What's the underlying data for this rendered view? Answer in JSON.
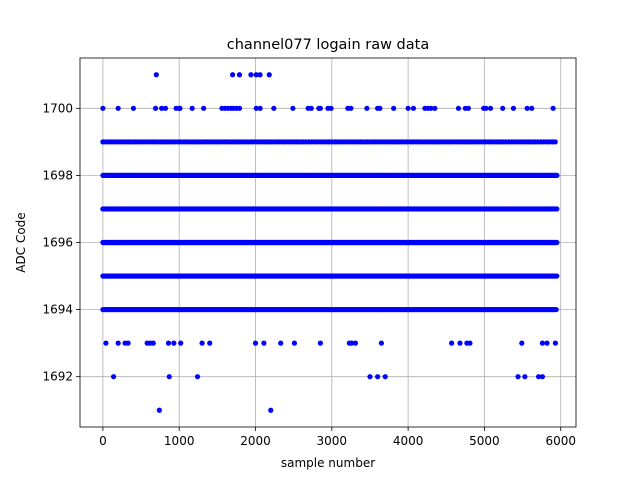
{
  "chart_data": {
    "type": "scatter",
    "title": "channel077 logain raw data",
    "xlabel": "sample number",
    "ylabel": "ADC Code",
    "xlim": [
      -300,
      6200
    ],
    "ylim": [
      1690.5,
      1701.5
    ],
    "xticks": [
      0,
      1000,
      2000,
      3000,
      4000,
      5000,
      6000
    ],
    "yticks": [
      1692,
      1694,
      1696,
      1698,
      1700
    ],
    "grid": true,
    "marker_color": "#0000ff",
    "series": [
      {
        "values_note_excluded": true,
        "points": [
          [
            700,
            1701
          ],
          [
            1700,
            1701
          ],
          [
            1790,
            1701
          ],
          [
            1940,
            1701
          ],
          [
            2010,
            1701
          ],
          [
            2060,
            1701
          ],
          [
            2180,
            1701
          ],
          [
            0,
            1700
          ],
          [
            200,
            1700
          ],
          [
            400,
            1700
          ],
          [
            690,
            1700
          ],
          [
            770,
            1700
          ],
          [
            820,
            1700
          ],
          [
            960,
            1700
          ],
          [
            1000,
            1700
          ],
          [
            1010,
            1700
          ],
          [
            1170,
            1700
          ],
          [
            1320,
            1700
          ],
          [
            1560,
            1700
          ],
          [
            1600,
            1700
          ],
          [
            1640,
            1700
          ],
          [
            1680,
            1700
          ],
          [
            1710,
            1700
          ],
          [
            1750,
            1700
          ],
          [
            1790,
            1700
          ],
          [
            2010,
            1700
          ],
          [
            2060,
            1700
          ],
          [
            2240,
            1700
          ],
          [
            2490,
            1700
          ],
          [
            2690,
            1700
          ],
          [
            2730,
            1700
          ],
          [
            2830,
            1700
          ],
          [
            2850,
            1700
          ],
          [
            2950,
            1700
          ],
          [
            2990,
            1700
          ],
          [
            3210,
            1700
          ],
          [
            3250,
            1700
          ],
          [
            3460,
            1700
          ],
          [
            3600,
            1700
          ],
          [
            3630,
            1700
          ],
          [
            3810,
            1700
          ],
          [
            4000,
            1700
          ],
          [
            4070,
            1700
          ],
          [
            4220,
            1700
          ],
          [
            4260,
            1700
          ],
          [
            4300,
            1700
          ],
          [
            4350,
            1700
          ],
          [
            4660,
            1700
          ],
          [
            4750,
            1700
          ],
          [
            4790,
            1700
          ],
          [
            4990,
            1700
          ],
          [
            5020,
            1700
          ],
          [
            5080,
            1700
          ],
          [
            5240,
            1700
          ],
          [
            5380,
            1700
          ],
          [
            5560,
            1700
          ],
          [
            5620,
            1700
          ],
          [
            5900,
            1700
          ],
          [
            40,
            1693
          ],
          [
            200,
            1693
          ],
          [
            290,
            1693
          ],
          [
            330,
            1693
          ],
          [
            580,
            1693
          ],
          [
            620,
            1693
          ],
          [
            660,
            1693
          ],
          [
            860,
            1693
          ],
          [
            930,
            1693
          ],
          [
            1020,
            1693
          ],
          [
            1300,
            1693
          ],
          [
            1400,
            1693
          ],
          [
            2000,
            1693
          ],
          [
            2110,
            1693
          ],
          [
            2330,
            1693
          ],
          [
            2510,
            1693
          ],
          [
            2850,
            1693
          ],
          [
            3230,
            1693
          ],
          [
            3260,
            1693
          ],
          [
            3310,
            1693
          ],
          [
            3650,
            1693
          ],
          [
            4570,
            1693
          ],
          [
            4680,
            1693
          ],
          [
            4770,
            1693
          ],
          [
            4810,
            1693
          ],
          [
            5490,
            1693
          ],
          [
            5760,
            1693
          ],
          [
            5820,
            1693
          ],
          [
            5930,
            1693
          ],
          [
            140,
            1692
          ],
          [
            870,
            1692
          ],
          [
            1240,
            1692
          ],
          [
            3500,
            1692
          ],
          [
            3600,
            1692
          ],
          [
            3700,
            1692
          ],
          [
            5440,
            1692
          ],
          [
            5530,
            1692
          ],
          [
            5710,
            1692
          ],
          [
            5760,
            1692
          ],
          [
            740,
            1691
          ],
          [
            2200,
            1691
          ]
        ]
      }
    ],
    "dense_rows": [
      {
        "y": 1699,
        "x_from": 0,
        "x_to": 5950,
        "step": 38
      },
      {
        "y": 1698,
        "x_from": 0,
        "x_to": 5950,
        "step": 14
      },
      {
        "y": 1697,
        "x_from": 0,
        "x_to": 5950,
        "step": 9
      },
      {
        "y": 1696,
        "x_from": 0,
        "x_to": 5950,
        "step": 7
      },
      {
        "y": 1695,
        "x_from": 0,
        "x_to": 5950,
        "step": 9
      },
      {
        "y": 1694,
        "x_from": 0,
        "x_to": 5950,
        "step": 18
      }
    ]
  }
}
